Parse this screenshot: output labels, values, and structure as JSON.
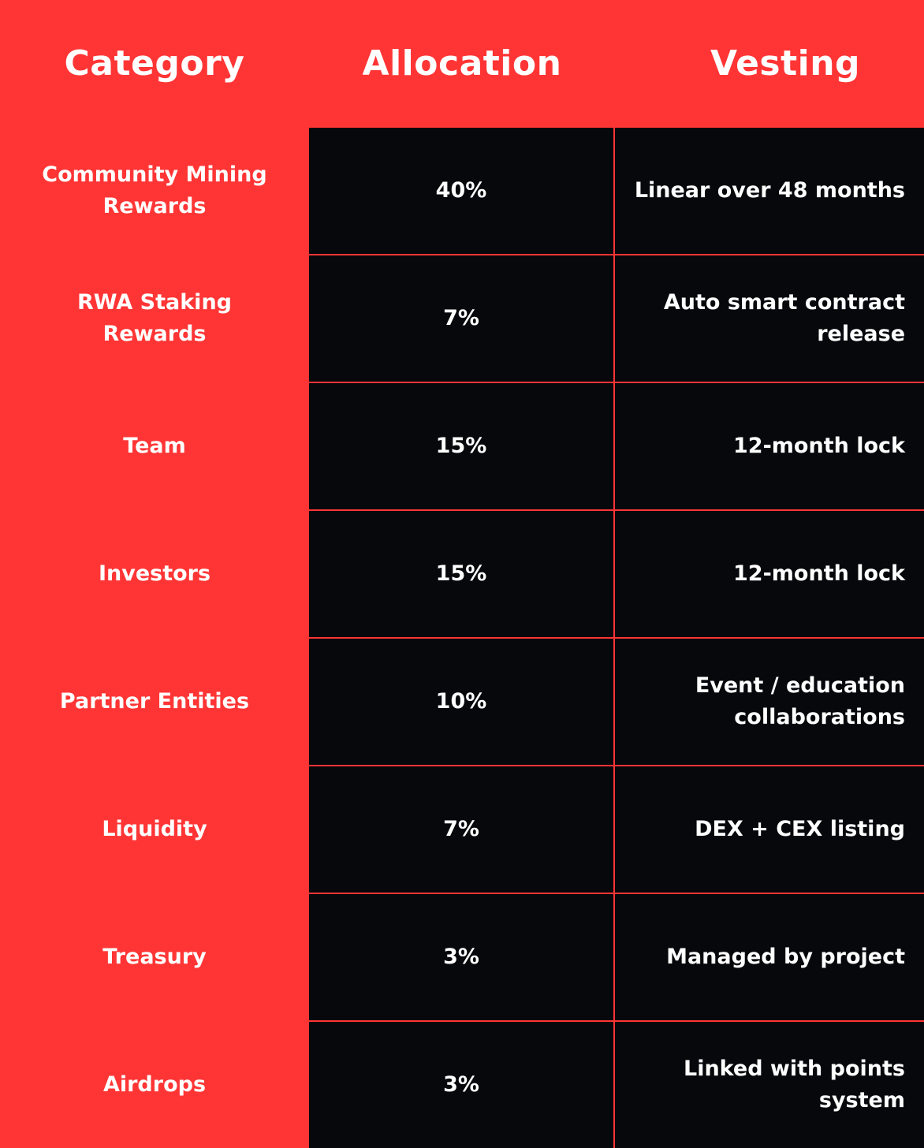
{
  "colors": {
    "background": "#ff3535",
    "cell": "#06080c",
    "text": "#ffffff"
  },
  "headers": {
    "category": "Category",
    "allocation": "Allocation",
    "vesting": "Vesting"
  },
  "rows": [
    {
      "category": "Community Mining Rewards",
      "allocation": "40%",
      "vesting": "Linear over 48 months"
    },
    {
      "category": "RWA Staking Rewards",
      "allocation": "7%",
      "vesting": "Auto smart contract release"
    },
    {
      "category": "Team",
      "allocation": "15%",
      "vesting": "12-month lock"
    },
    {
      "category": "Investors",
      "allocation": "15%",
      "vesting": "12-month lock"
    },
    {
      "category": "Partner Entities",
      "allocation": "10%",
      "vesting": "Event / education collaborations"
    },
    {
      "category": "Liquidity",
      "allocation": "7%",
      "vesting": "DEX + CEX listing"
    },
    {
      "category": "Treasury",
      "allocation": "3%",
      "vesting": "Managed by project"
    },
    {
      "category": "Airdrops",
      "allocation": "3%",
      "vesting": "Linked with points system"
    }
  ]
}
